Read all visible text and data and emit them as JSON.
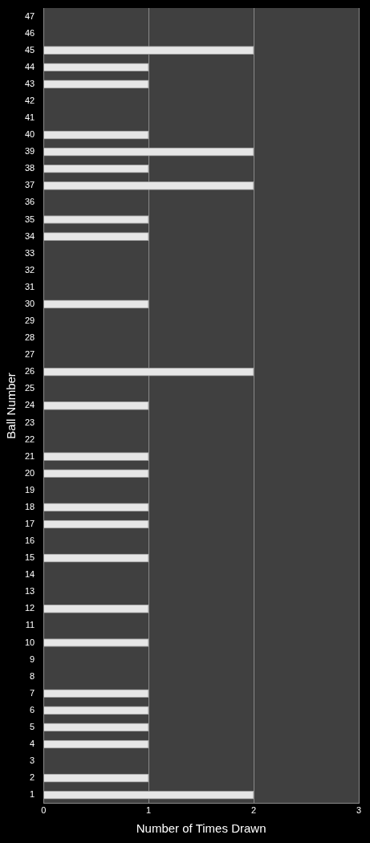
{
  "chart_data": {
    "type": "bar",
    "orientation": "horizontal",
    "xlabel": "Number of Times Drawn",
    "ylabel": "Ball Number",
    "categories": [
      "47",
      "46",
      "45",
      "44",
      "43",
      "42",
      "41",
      "40",
      "39",
      "38",
      "37",
      "36",
      "35",
      "34",
      "33",
      "32",
      "31",
      "30",
      "29",
      "28",
      "27",
      "26",
      "25",
      "24",
      "23",
      "22",
      "21",
      "20",
      "19",
      "18",
      "17",
      "16",
      "15",
      "14",
      "13",
      "12",
      "11",
      "10",
      "9",
      "8",
      "7",
      "6",
      "5",
      "4",
      "3",
      "2",
      "1"
    ],
    "values": [
      0,
      0,
      2,
      1,
      1,
      0,
      0,
      1,
      2,
      1,
      2,
      0,
      1,
      1,
      0,
      0,
      0,
      1,
      0,
      0,
      0,
      2,
      0,
      1,
      0,
      0,
      1,
      1,
      0,
      1,
      1,
      0,
      1,
      0,
      0,
      1,
      0,
      1,
      0,
      0,
      1,
      1,
      1,
      1,
      0,
      1,
      2
    ],
    "color": "#e6e6e6",
    "xlim": [
      0,
      3
    ],
    "xticks": [
      0,
      1,
      2,
      3
    ],
    "grid": "x",
    "legend": false
  }
}
